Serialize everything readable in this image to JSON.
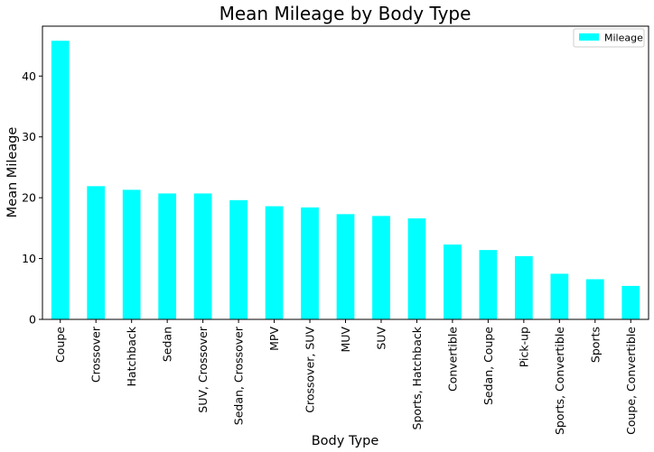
{
  "chart_data": {
    "type": "bar",
    "title": "Mean Mileage by Body Type",
    "xlabel": "Body Type",
    "ylabel": "Mean Mileage",
    "categories": [
      "Coupe",
      "Crossover",
      "Hatchback",
      "Sedan",
      "SUV, Crossover",
      "Sedan, Crossover",
      "MPV",
      "Crossover, SUV",
      "MUV",
      "SUV",
      "Sports, Hatchback",
      "Convertible",
      "Sedan, Coupe",
      "Pick-up",
      "Sports, Convertible",
      "Sports",
      "Coupe, Convertible"
    ],
    "series": [
      {
        "name": "Mileage",
        "values": [
          45.8,
          21.9,
          21.3,
          20.7,
          20.7,
          19.6,
          18.6,
          18.4,
          17.3,
          17.0,
          16.6,
          12.3,
          11.4,
          10.4,
          7.5,
          6.6,
          5.5
        ]
      }
    ],
    "ylim": [
      0,
      48.2
    ],
    "yticks": [
      0,
      10,
      20,
      30,
      40
    ],
    "legend_position": "top-right",
    "grid": false,
    "colors": {
      "bar": "#00ffff",
      "axis": "#000000"
    }
  }
}
